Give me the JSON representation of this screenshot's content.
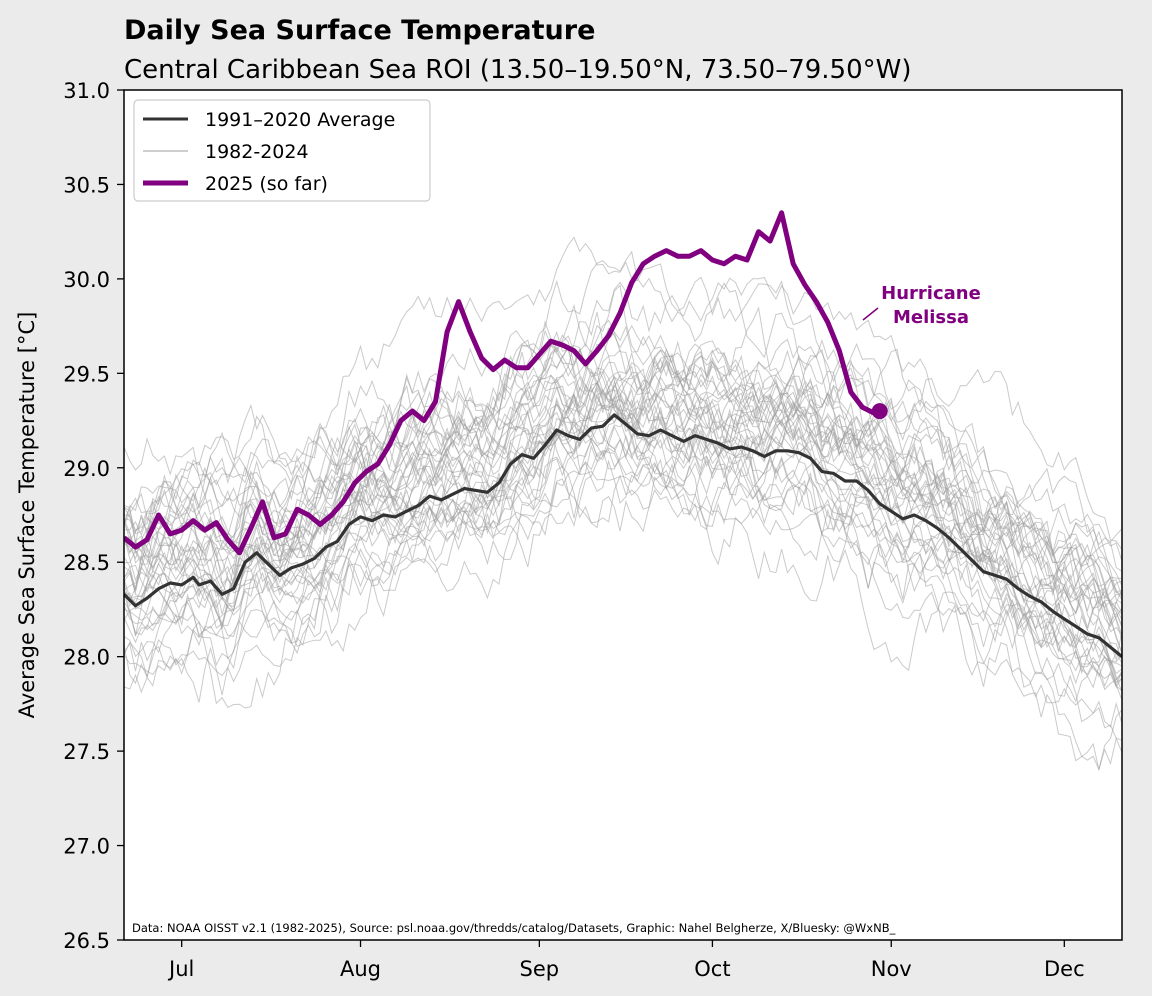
{
  "chart_data": {
    "type": "line",
    "title": "Daily Sea Surface Temperature",
    "subtitle": "Central Caribbean Sea ROI (13.50–19.50°N, 73.50–79.50°W)",
    "xlabel": "",
    "ylabel": "Average Sea Surface Temperature [°C]",
    "ylim": [
      26.5,
      31.0
    ],
    "xlim_day_of_year": [
      172,
      345
    ],
    "yticks": [
      "26.5",
      "27.0",
      "27.5",
      "28.0",
      "28.5",
      "29.0",
      "29.5",
      "30.0",
      "30.5",
      "31.0"
    ],
    "yticks_values": [
      26.5,
      27.0,
      27.5,
      28.0,
      28.5,
      29.0,
      29.5,
      30.0,
      30.5,
      31.0
    ],
    "xticks": [
      {
        "label": "Jul",
        "day": 182
      },
      {
        "label": "Aug",
        "day": 213
      },
      {
        "label": "Sep",
        "day": 244
      },
      {
        "label": "Oct",
        "day": 274
      },
      {
        "label": "Nov",
        "day": 305
      },
      {
        "label": "Dec",
        "day": 335
      }
    ],
    "legend": {
      "placement": "top-left",
      "entries": [
        {
          "label": "1991–2020 Average",
          "color": "#333333"
        },
        {
          "label": "1982-2024",
          "color": "#bdbdbd"
        },
        {
          "label": "2025 (so far)",
          "color": "#800080"
        }
      ]
    },
    "annotation": {
      "line1": "Hurricane",
      "line2": "Melissa",
      "color": "#800080",
      "day": 307,
      "value": 29.87
    },
    "credit": "Data: NOAA OISST v2.1 (1982-2025), Source: psl.noaa.gov/thredds/catalog/Datasets, Graphic: Nahel Belgherze, X/Bluesky: @WxNB_",
    "series": [
      {
        "name": "1991–2020 Average",
        "color": "#333333",
        "points": [
          [
            172,
            28.33
          ],
          [
            174,
            28.27
          ],
          [
            176,
            28.31
          ],
          [
            178,
            28.36
          ],
          [
            180,
            28.39
          ],
          [
            182,
            28.38
          ],
          [
            184,
            28.42
          ],
          [
            185,
            28.38
          ],
          [
            187,
            28.4
          ],
          [
            189,
            28.33
          ],
          [
            191,
            28.36
          ],
          [
            193,
            28.5
          ],
          [
            195,
            28.55
          ],
          [
            197,
            28.49
          ],
          [
            199,
            28.43
          ],
          [
            201,
            28.47
          ],
          [
            203,
            28.49
          ],
          [
            205,
            28.52
          ],
          [
            207,
            28.58
          ],
          [
            209,
            28.61
          ],
          [
            211,
            28.7
          ],
          [
            213,
            28.74
          ],
          [
            215,
            28.72
          ],
          [
            217,
            28.75
          ],
          [
            219,
            28.74
          ],
          [
            221,
            28.77
          ],
          [
            223,
            28.8
          ],
          [
            225,
            28.85
          ],
          [
            227,
            28.83
          ],
          [
            229,
            28.86
          ],
          [
            231,
            28.89
          ],
          [
            233,
            28.88
          ],
          [
            235,
            28.87
          ],
          [
            237,
            28.92
          ],
          [
            239,
            29.02
          ],
          [
            241,
            29.07
          ],
          [
            243,
            29.05
          ],
          [
            245,
            29.12
          ],
          [
            247,
            29.2
          ],
          [
            249,
            29.17
          ],
          [
            251,
            29.15
          ],
          [
            253,
            29.21
          ],
          [
            255,
            29.22
          ],
          [
            257,
            29.28
          ],
          [
            259,
            29.23
          ],
          [
            261,
            29.18
          ],
          [
            263,
            29.17
          ],
          [
            265,
            29.2
          ],
          [
            267,
            29.17
          ],
          [
            269,
            29.14
          ],
          [
            271,
            29.17
          ],
          [
            273,
            29.15
          ],
          [
            275,
            29.13
          ],
          [
            277,
            29.1
          ],
          [
            279,
            29.11
          ],
          [
            281,
            29.09
          ],
          [
            283,
            29.06
          ],
          [
            285,
            29.09
          ],
          [
            287,
            29.09
          ],
          [
            289,
            29.08
          ],
          [
            291,
            29.05
          ],
          [
            293,
            28.98
          ],
          [
            295,
            28.97
          ],
          [
            297,
            28.93
          ],
          [
            299,
            28.93
          ],
          [
            301,
            28.88
          ],
          [
            303,
            28.81
          ],
          [
            305,
            28.77
          ],
          [
            307,
            28.73
          ],
          [
            309,
            28.75
          ],
          [
            311,
            28.72
          ],
          [
            313,
            28.68
          ],
          [
            315,
            28.63
          ],
          [
            317,
            28.57
          ],
          [
            319,
            28.51
          ],
          [
            321,
            28.45
          ],
          [
            323,
            28.43
          ],
          [
            325,
            28.41
          ],
          [
            327,
            28.36
          ],
          [
            329,
            28.32
          ],
          [
            331,
            28.29
          ],
          [
            333,
            28.24
          ],
          [
            335,
            28.2
          ],
          [
            337,
            28.16
          ],
          [
            339,
            28.12
          ],
          [
            341,
            28.1
          ],
          [
            343,
            28.05
          ],
          [
            345,
            28.0
          ]
        ]
      },
      {
        "name": "2025 (so far)",
        "color": "#800080",
        "points": [
          [
            172,
            28.63
          ],
          [
            174,
            28.58
          ],
          [
            176,
            28.62
          ],
          [
            178,
            28.75
          ],
          [
            180,
            28.65
          ],
          [
            182,
            28.67
          ],
          [
            184,
            28.72
          ],
          [
            186,
            28.67
          ],
          [
            188,
            28.71
          ],
          [
            190,
            28.62
          ],
          [
            192,
            28.55
          ],
          [
            194,
            28.68
          ],
          [
            196,
            28.82
          ],
          [
            198,
            28.63
          ],
          [
            200,
            28.65
          ],
          [
            202,
            28.78
          ],
          [
            204,
            28.75
          ],
          [
            206,
            28.7
          ],
          [
            208,
            28.75
          ],
          [
            210,
            28.82
          ],
          [
            212,
            28.92
          ],
          [
            214,
            28.98
          ],
          [
            216,
            29.02
          ],
          [
            218,
            29.12
          ],
          [
            220,
            29.25
          ],
          [
            222,
            29.3
          ],
          [
            224,
            29.25
          ],
          [
            226,
            29.35
          ],
          [
            228,
            29.72
          ],
          [
            230,
            29.88
          ],
          [
            232,
            29.72
          ],
          [
            234,
            29.58
          ],
          [
            236,
            29.52
          ],
          [
            238,
            29.57
          ],
          [
            240,
            29.53
          ],
          [
            242,
            29.53
          ],
          [
            244,
            29.6
          ],
          [
            246,
            29.67
          ],
          [
            248,
            29.65
          ],
          [
            250,
            29.62
          ],
          [
            252,
            29.55
          ],
          [
            254,
            29.62
          ],
          [
            256,
            29.7
          ],
          [
            258,
            29.82
          ],
          [
            260,
            29.98
          ],
          [
            262,
            30.08
          ],
          [
            264,
            30.12
          ],
          [
            266,
            30.15
          ],
          [
            268,
            30.12
          ],
          [
            270,
            30.12
          ],
          [
            272,
            30.15
          ],
          [
            274,
            30.1
          ],
          [
            276,
            30.08
          ],
          [
            278,
            30.12
          ],
          [
            280,
            30.1
          ],
          [
            282,
            30.25
          ],
          [
            284,
            30.2
          ],
          [
            286,
            30.35
          ],
          [
            288,
            30.08
          ],
          [
            290,
            29.97
          ],
          [
            292,
            29.88
          ],
          [
            294,
            29.77
          ],
          [
            296,
            29.62
          ],
          [
            298,
            29.4
          ],
          [
            300,
            29.32
          ],
          [
            302,
            29.29
          ],
          [
            303,
            29.3
          ]
        ]
      }
    ]
  }
}
